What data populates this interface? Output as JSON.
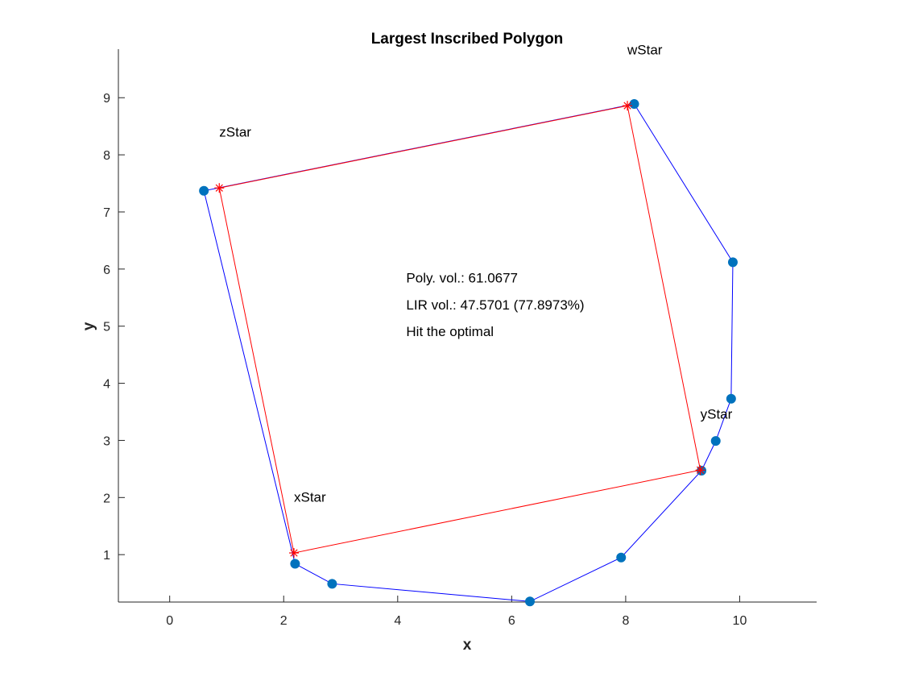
{
  "chart_data": {
    "type": "scatter",
    "title": "Largest Inscribed Polygon",
    "xlabel": "x",
    "ylabel": "y",
    "xlim": [
      -0.9,
      11.35
    ],
    "ylim": [
      0.17,
      9.85
    ],
    "xticks": [
      0,
      2,
      4,
      6,
      8,
      10
    ],
    "yticks": [
      1,
      2,
      3,
      4,
      5,
      6,
      7,
      8,
      9
    ],
    "grid": false,
    "series": [
      {
        "kind": "polygon",
        "color": "#0000ff",
        "marker_color": "#0072bd",
        "points": [
          [
            0.6,
            7.37
          ],
          [
            2.2,
            0.84
          ],
          [
            2.85,
            0.49
          ],
          [
            6.32,
            0.18
          ],
          [
            7.92,
            0.95
          ],
          [
            9.33,
            2.47
          ],
          [
            9.58,
            2.99
          ],
          [
            9.85,
            3.73
          ],
          [
            9.88,
            6.12
          ],
          [
            8.15,
            8.89
          ],
          [
            0.6,
            7.37
          ]
        ]
      },
      {
        "kind": "rectangle",
        "color": "#ff0000",
        "points": [
          [
            2.18,
            1.03
          ],
          [
            9.31,
            2.48
          ],
          [
            8.03,
            8.86
          ],
          [
            0.87,
            7.42
          ],
          [
            2.18,
            1.03
          ]
        ]
      }
    ],
    "point_labels": [
      {
        "text": "xStar",
        "x": 2.18,
        "y": 1.93
      },
      {
        "text": "yStar",
        "x": 9.31,
        "y": 3.38
      },
      {
        "text": "zStar",
        "x": 0.87,
        "y": 8.32
      },
      {
        "text": "wStar",
        "x": 8.03,
        "y": 9.76
      }
    ],
    "annotations": [
      {
        "text": "Poly. vol.: 61.0677",
        "x": 4.15,
        "y": 5.85
      },
      {
        "text": "LIR vol.: 47.5701 (77.8973%)",
        "x": 4.15,
        "y": 5.38
      },
      {
        "text": "Hit the optimal",
        "x": 4.15,
        "y": 4.91
      }
    ]
  }
}
